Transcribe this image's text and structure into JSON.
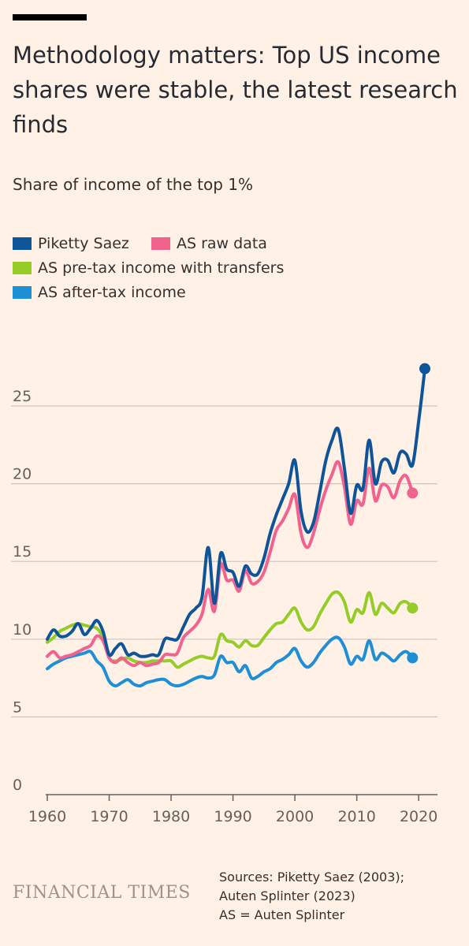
{
  "header": {
    "title": "Methodology matters: Top US income shares were stable, the latest research finds",
    "subtitle": "Share of income of the top 1%"
  },
  "footer": {
    "logo_text": "FINANCIAL TIMES",
    "sources": [
      "Sources: Piketty Saez (2003);",
      "Auten Splinter (2023)",
      "AS = Auten Splinter"
    ]
  },
  "chart_data": {
    "type": "line",
    "title": "",
    "xlabel": "",
    "ylabel": "",
    "xlim": [
      1960,
      2022
    ],
    "ylim": [
      0,
      28
    ],
    "x_ticks": [
      1960,
      1970,
      1980,
      1990,
      2000,
      2010,
      2020
    ],
    "y_ticks": [
      0,
      5,
      10,
      15,
      20,
      25
    ],
    "grid": "horizontal",
    "legend_placement": "top-left",
    "series": [
      {
        "name": "Piketty Saez",
        "color": "#0F5499",
        "end_marker": true,
        "points": [
          [
            1960,
            10.0
          ],
          [
            1961,
            10.6
          ],
          [
            1962,
            10.2
          ],
          [
            1963,
            10.2
          ],
          [
            1964,
            10.5
          ],
          [
            1965,
            11.0
          ],
          [
            1966,
            10.3
          ],
          [
            1967,
            10.7
          ],
          [
            1968,
            11.2
          ],
          [
            1969,
            10.5
          ],
          [
            1970,
            9.0
          ],
          [
            1971,
            9.4
          ],
          [
            1972,
            9.7
          ],
          [
            1973,
            9.0
          ],
          [
            1974,
            9.1
          ],
          [
            1975,
            8.9
          ],
          [
            1976,
            8.9
          ],
          [
            1977,
            9.0
          ],
          [
            1978,
            9.0
          ],
          [
            1979,
            10.0
          ],
          [
            1980,
            10.0
          ],
          [
            1981,
            10.0
          ],
          [
            1982,
            10.8
          ],
          [
            1983,
            11.6
          ],
          [
            1984,
            12.0
          ],
          [
            1985,
            12.7
          ],
          [
            1986,
            15.9
          ],
          [
            1987,
            12.3
          ],
          [
            1988,
            15.5
          ],
          [
            1989,
            14.5
          ],
          [
            1990,
            14.3
          ],
          [
            1991,
            13.4
          ],
          [
            1992,
            14.7
          ],
          [
            1993,
            14.2
          ],
          [
            1994,
            14.2
          ],
          [
            1995,
            15.2
          ],
          [
            1996,
            16.8
          ],
          [
            1997,
            18.0
          ],
          [
            1998,
            19.0
          ],
          [
            1999,
            20.0
          ],
          [
            2000,
            21.5
          ],
          [
            2001,
            18.2
          ],
          [
            2002,
            16.9
          ],
          [
            2003,
            17.5
          ],
          [
            2004,
            19.4
          ],
          [
            2005,
            21.5
          ],
          [
            2006,
            22.8
          ],
          [
            2007,
            23.5
          ],
          [
            2008,
            21.0
          ],
          [
            2009,
            18.1
          ],
          [
            2010,
            19.9
          ],
          [
            2011,
            19.7
          ],
          [
            2012,
            22.8
          ],
          [
            2013,
            20.0
          ],
          [
            2014,
            21.4
          ],
          [
            2015,
            21.5
          ],
          [
            2016,
            20.7
          ],
          [
            2017,
            22.0
          ],
          [
            2018,
            21.9
          ],
          [
            2019,
            21.2
          ],
          [
            2020,
            24.0
          ],
          [
            2021,
            27.4
          ]
        ]
      },
      {
        "name": "AS raw data",
        "color": "#F2628F",
        "end_marker": true,
        "points": [
          [
            1960,
            8.9
          ],
          [
            1961,
            9.2
          ],
          [
            1962,
            8.8
          ],
          [
            1963,
            8.9
          ],
          [
            1964,
            9.0
          ],
          [
            1965,
            9.2
          ],
          [
            1966,
            9.4
          ],
          [
            1967,
            9.6
          ],
          [
            1968,
            10.2
          ],
          [
            1969,
            9.9
          ],
          [
            1970,
            8.8
          ],
          [
            1971,
            8.5
          ],
          [
            1972,
            8.8
          ],
          [
            1973,
            8.5
          ],
          [
            1974,
            8.3
          ],
          [
            1975,
            8.5
          ],
          [
            1976,
            8.3
          ],
          [
            1977,
            8.4
          ],
          [
            1978,
            8.5
          ],
          [
            1979,
            9.0
          ],
          [
            1980,
            9.0
          ],
          [
            1981,
            9.1
          ],
          [
            1982,
            10.1
          ],
          [
            1983,
            10.5
          ],
          [
            1984,
            10.9
          ],
          [
            1985,
            11.6
          ],
          [
            1986,
            13.2
          ],
          [
            1987,
            11.8
          ],
          [
            1988,
            14.8
          ],
          [
            1989,
            13.8
          ],
          [
            1990,
            13.8
          ],
          [
            1991,
            13.1
          ],
          [
            1992,
            14.4
          ],
          [
            1993,
            13.6
          ],
          [
            1994,
            13.7
          ],
          [
            1995,
            14.3
          ],
          [
            1996,
            15.6
          ],
          [
            1997,
            17.0
          ],
          [
            1998,
            17.6
          ],
          [
            1999,
            18.4
          ],
          [
            2000,
            19.3
          ],
          [
            2001,
            16.8
          ],
          [
            2002,
            15.9
          ],
          [
            2003,
            16.8
          ],
          [
            2004,
            18.3
          ],
          [
            2005,
            19.6
          ],
          [
            2006,
            20.6
          ],
          [
            2007,
            21.4
          ],
          [
            2008,
            19.8
          ],
          [
            2009,
            17.4
          ],
          [
            2010,
            18.9
          ],
          [
            2011,
            18.7
          ],
          [
            2012,
            21.0
          ],
          [
            2013,
            18.9
          ],
          [
            2014,
            19.9
          ],
          [
            2015,
            19.8
          ],
          [
            2016,
            19.1
          ],
          [
            2017,
            20.2
          ],
          [
            2018,
            20.5
          ],
          [
            2019,
            19.4
          ]
        ]
      },
      {
        "name": "AS pre-tax income with transfers",
        "color": "#96CC28",
        "end_marker": true,
        "points": [
          [
            1960,
            9.8
          ],
          [
            1961,
            10.1
          ],
          [
            1962,
            10.5
          ],
          [
            1963,
            10.7
          ],
          [
            1964,
            10.9
          ],
          [
            1965,
            11.0
          ],
          [
            1966,
            10.9
          ],
          [
            1967,
            10.8
          ],
          [
            1968,
            10.7
          ],
          [
            1969,
            10.1
          ],
          [
            1970,
            8.8
          ],
          [
            1971,
            8.6
          ],
          [
            1972,
            8.7
          ],
          [
            1973,
            8.8
          ],
          [
            1974,
            8.6
          ],
          [
            1975,
            8.5
          ],
          [
            1976,
            8.5
          ],
          [
            1977,
            8.6
          ],
          [
            1978,
            8.6
          ],
          [
            1979,
            8.6
          ],
          [
            1980,
            8.6
          ],
          [
            1981,
            8.2
          ],
          [
            1982,
            8.4
          ],
          [
            1983,
            8.6
          ],
          [
            1984,
            8.8
          ],
          [
            1985,
            8.9
          ],
          [
            1986,
            8.8
          ],
          [
            1987,
            8.9
          ],
          [
            1988,
            10.3
          ],
          [
            1989,
            9.9
          ],
          [
            1990,
            9.8
          ],
          [
            1991,
            9.5
          ],
          [
            1992,
            9.9
          ],
          [
            1993,
            9.6
          ],
          [
            1994,
            9.6
          ],
          [
            1995,
            10.1
          ],
          [
            1996,
            10.6
          ],
          [
            1997,
            11.0
          ],
          [
            1998,
            11.1
          ],
          [
            1999,
            11.6
          ],
          [
            2000,
            12.0
          ],
          [
            2001,
            11.1
          ],
          [
            2002,
            10.6
          ],
          [
            2003,
            10.8
          ],
          [
            2004,
            11.6
          ],
          [
            2005,
            12.3
          ],
          [
            2006,
            12.9
          ],
          [
            2007,
            13.0
          ],
          [
            2008,
            12.4
          ],
          [
            2009,
            11.1
          ],
          [
            2010,
            11.9
          ],
          [
            2011,
            11.7
          ],
          [
            2012,
            13.0
          ],
          [
            2013,
            11.6
          ],
          [
            2014,
            12.3
          ],
          [
            2015,
            12.0
          ],
          [
            2016,
            11.7
          ],
          [
            2017,
            12.3
          ],
          [
            2018,
            12.4
          ],
          [
            2019,
            12.0
          ]
        ]
      },
      {
        "name": "AS after-tax income",
        "color": "#1E8FD6",
        "end_marker": true,
        "points": [
          [
            1960,
            8.1
          ],
          [
            1961,
            8.4
          ],
          [
            1962,
            8.6
          ],
          [
            1963,
            8.8
          ],
          [
            1964,
            8.9
          ],
          [
            1965,
            9.0
          ],
          [
            1966,
            9.1
          ],
          [
            1967,
            9.2
          ],
          [
            1968,
            8.6
          ],
          [
            1969,
            8.2
          ],
          [
            1970,
            7.3
          ],
          [
            1971,
            7.0
          ],
          [
            1972,
            7.2
          ],
          [
            1973,
            7.4
          ],
          [
            1974,
            7.1
          ],
          [
            1975,
            7.0
          ],
          [
            1976,
            7.2
          ],
          [
            1977,
            7.3
          ],
          [
            1978,
            7.4
          ],
          [
            1979,
            7.4
          ],
          [
            1980,
            7.1
          ],
          [
            1981,
            7.0
          ],
          [
            1982,
            7.1
          ],
          [
            1983,
            7.3
          ],
          [
            1984,
            7.5
          ],
          [
            1985,
            7.6
          ],
          [
            1986,
            7.5
          ],
          [
            1987,
            7.7
          ],
          [
            1988,
            8.9
          ],
          [
            1989,
            8.5
          ],
          [
            1990,
            8.5
          ],
          [
            1991,
            7.9
          ],
          [
            1992,
            8.3
          ],
          [
            1993,
            7.5
          ],
          [
            1994,
            7.6
          ],
          [
            1995,
            7.9
          ],
          [
            1996,
            8.1
          ],
          [
            1997,
            8.5
          ],
          [
            1998,
            8.7
          ],
          [
            1999,
            9.0
          ],
          [
            2000,
            9.4
          ],
          [
            2001,
            8.6
          ],
          [
            2002,
            8.2
          ],
          [
            2003,
            8.5
          ],
          [
            2004,
            9.1
          ],
          [
            2005,
            9.6
          ],
          [
            2006,
            10.0
          ],
          [
            2007,
            10.1
          ],
          [
            2008,
            9.5
          ],
          [
            2009,
            8.4
          ],
          [
            2010,
            8.9
          ],
          [
            2011,
            8.7
          ],
          [
            2012,
            9.9
          ],
          [
            2013,
            8.7
          ],
          [
            2014,
            9.1
          ],
          [
            2015,
            8.9
          ],
          [
            2016,
            8.6
          ],
          [
            2017,
            9.0
          ],
          [
            2018,
            9.2
          ],
          [
            2019,
            8.8
          ]
        ]
      }
    ]
  }
}
